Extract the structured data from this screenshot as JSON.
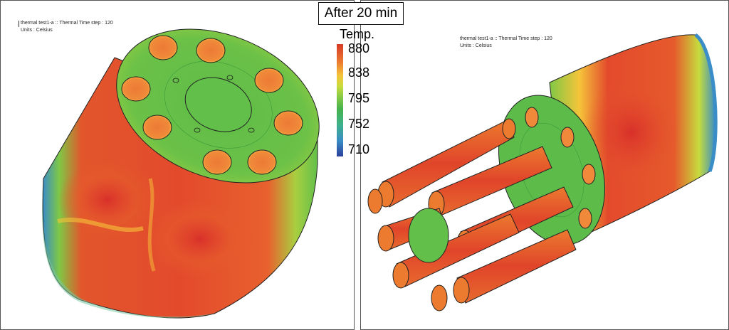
{
  "title": "After 20 min",
  "legend": {
    "title": "Temp.",
    "ticks": [
      "880",
      "838",
      "795",
      "752",
      "710"
    ],
    "colors": [
      "#d63a27",
      "#ec7a2f",
      "#f5c43a",
      "#7fc845",
      "#45b24d",
      "#3a8dc6",
      "#2a3f9c"
    ]
  },
  "left_view": {
    "info_line1": "thermal test1-a :: Thermal Time step : 120",
    "info_line2": "Units : Celsius"
  },
  "right_view": {
    "info_line1": "thermal test1-a :: Thermal Time step : 120",
    "info_line2": "Units : Celsius"
  }
}
